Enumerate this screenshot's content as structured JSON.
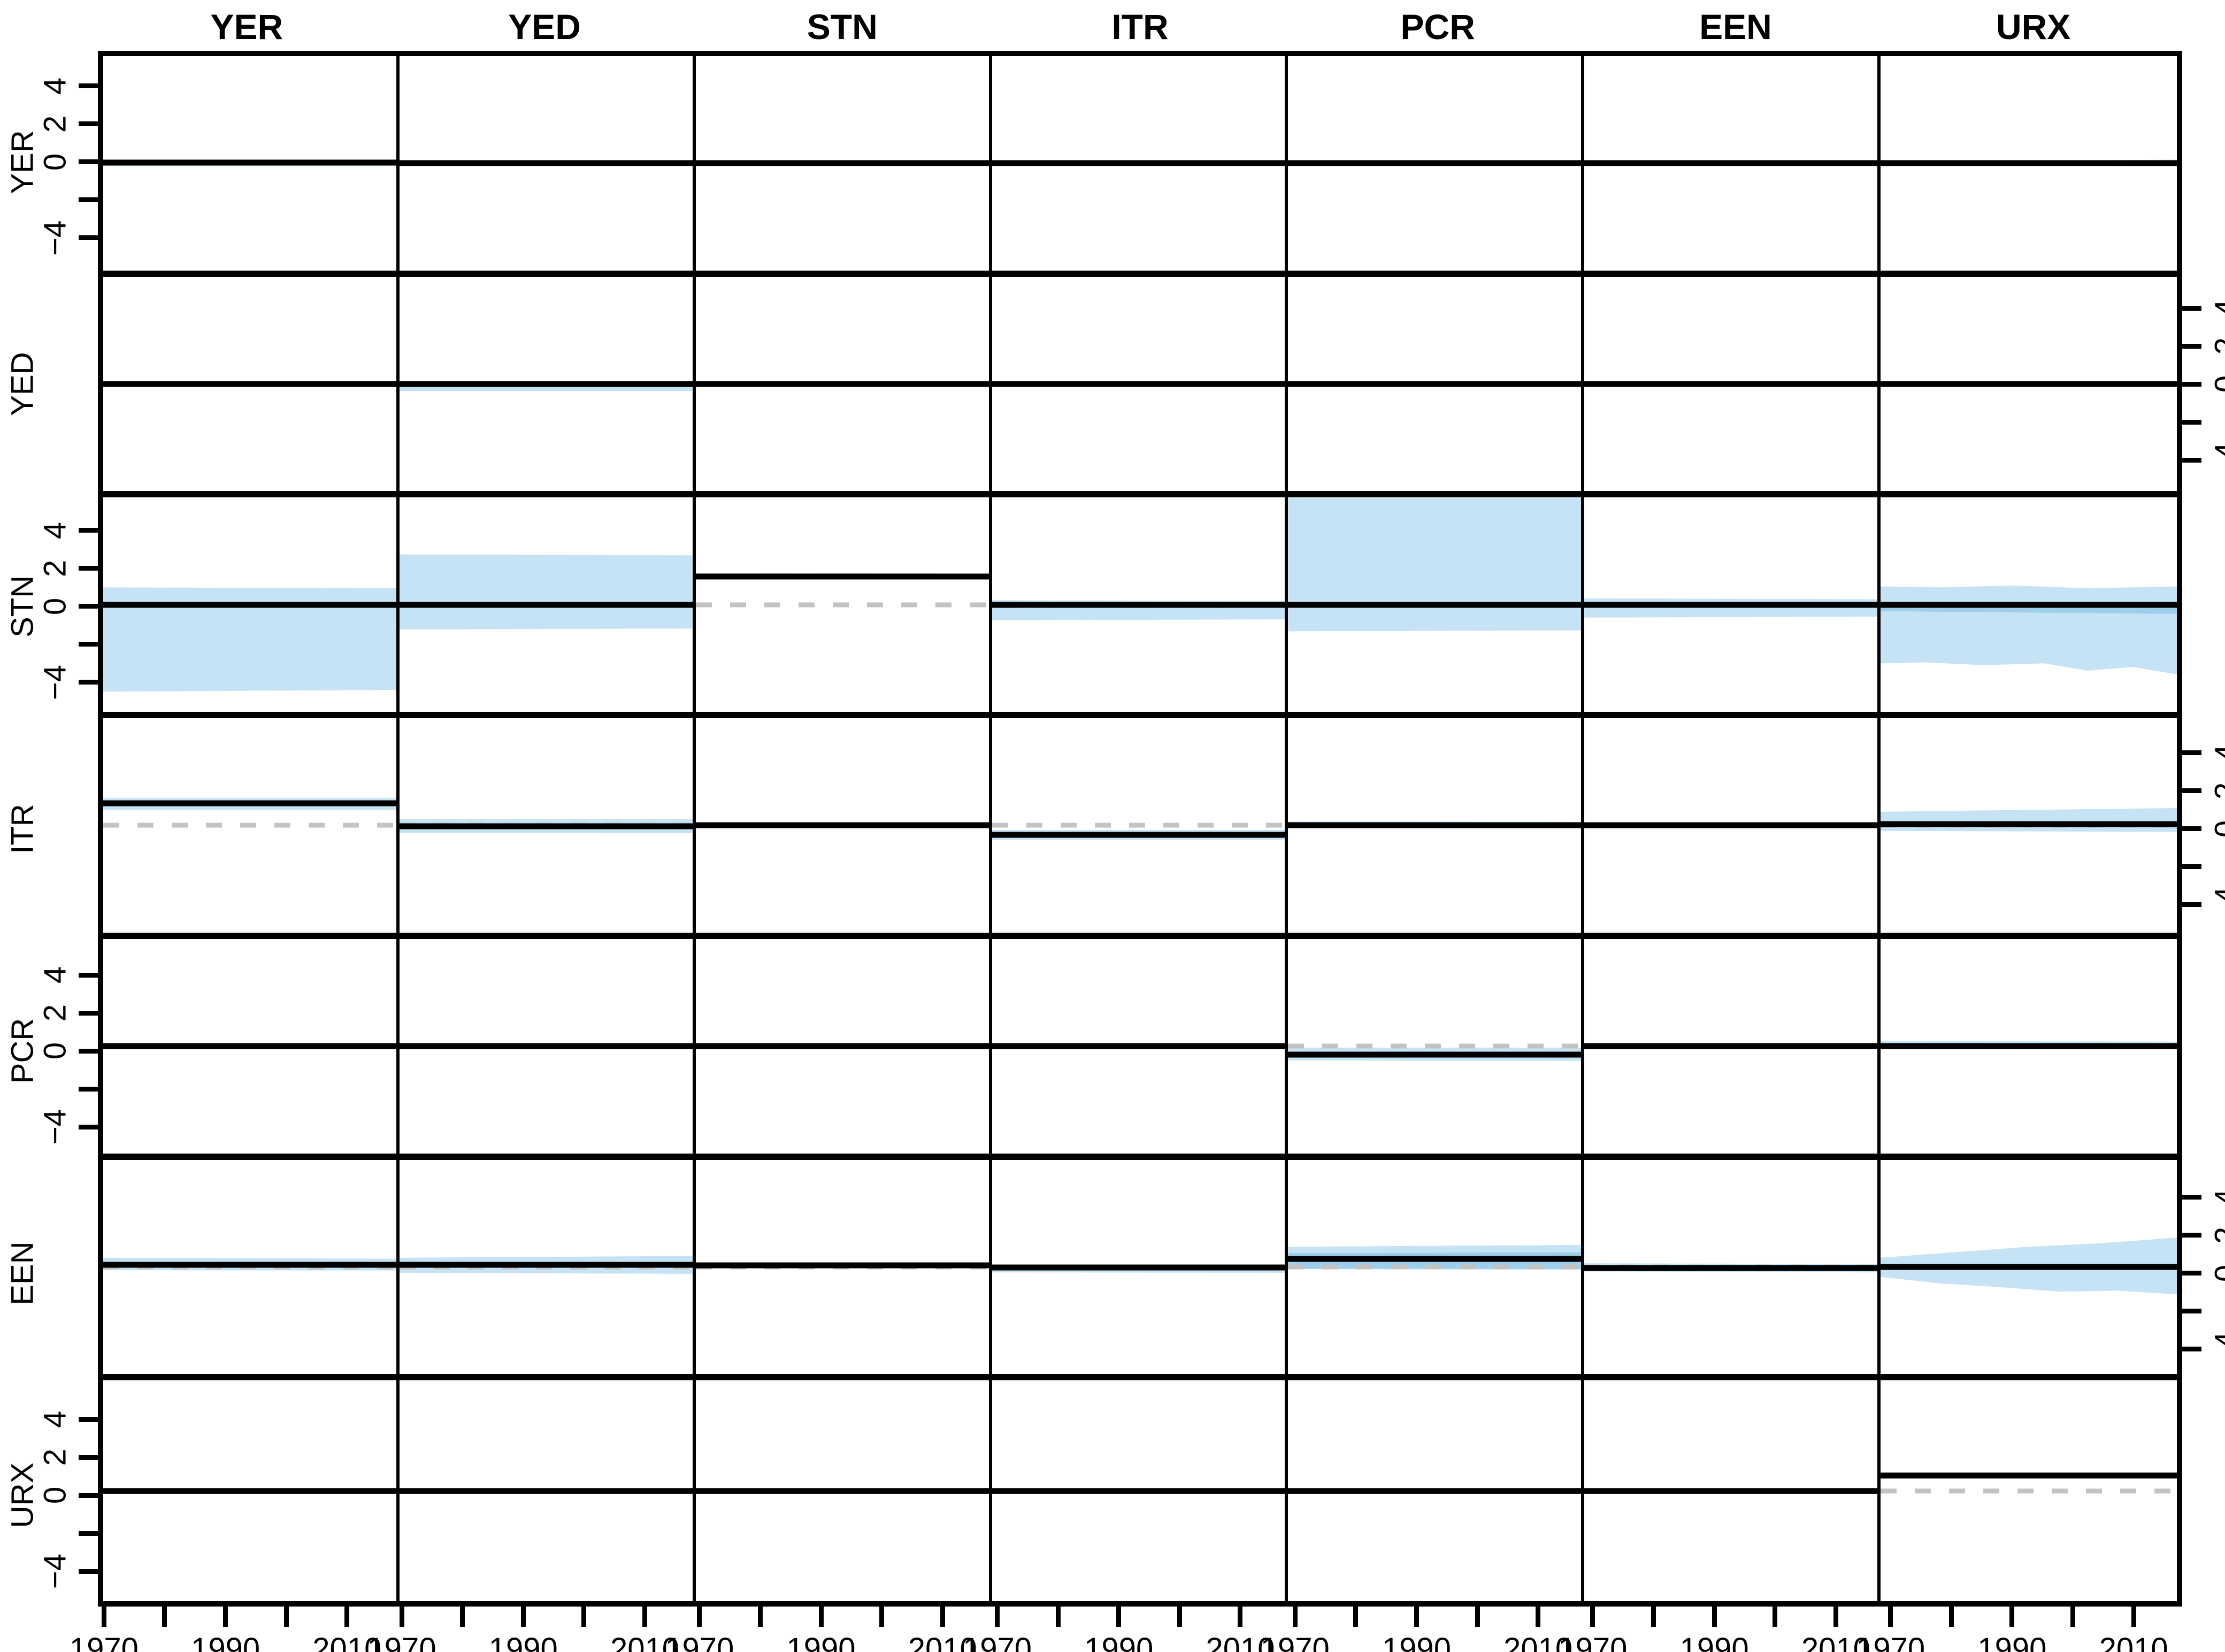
{
  "figure": {
    "title": "",
    "columns": [
      "YER",
      "YED",
      "STN",
      "ITR",
      "PCR",
      "EEN",
      "URX"
    ],
    "rows": [
      "YER",
      "YED",
      "STN",
      "ITR",
      "PCR",
      "EEN",
      "URX"
    ]
  },
  "axis": {
    "x_ticks": [
      1970,
      1980,
      1990,
      2000,
      2010
    ],
    "x_tick_labels": [
      "1970",
      "",
      "1990",
      "",
      "2010"
    ],
    "x_range": [
      1969,
      2018
    ],
    "y_ticks": [
      4,
      2,
      0,
      -2,
      -4
    ],
    "y_tick_labels": [
      "4",
      "2",
      "0",
      "",
      "−4"
    ],
    "y_range": [
      -5.85,
      5.85
    ],
    "left_axis_rows": [
      0,
      2,
      4,
      6
    ],
    "right_axis_rows": [
      1,
      3,
      5
    ]
  },
  "colors": {
    "band": "#c5e3f5",
    "band_inner": "#9dcfec",
    "line": "#000000",
    "zero_dash": "#c3c3c3",
    "frame": "#000000",
    "background": "#ffffff"
  },
  "chart_data": {
    "type": "line",
    "description": "7x7 matrix of impulse responses: rows = responding variable, columns = shock; each panel shows a flat response line with shaded confidence band over 1969-2018; values in units of the y axis (-4..4 ticks). band = [top-left, top-right, bottom-right, bottom-left] in data units.",
    "matrix": [
      {
        "response": "YER",
        "cells": [
          {
            "shock": "YER",
            "line": 0.05,
            "band": [
              0.12,
              0.1,
              -0.15,
              -0.15
            ]
          },
          {
            "shock": "YED",
            "line": 0,
            "band": [
              0.08,
              0.08,
              -0.1,
              -0.1
            ]
          },
          {
            "shock": "STN",
            "line": 0,
            "band": [
              0.05,
              0.05,
              -0.06,
              -0.06
            ]
          },
          {
            "shock": "ITR",
            "line": 0,
            "band": [
              0.06,
              0.06,
              -0.08,
              -0.08
            ]
          },
          {
            "shock": "PCR",
            "line": 0,
            "band": [
              0.06,
              0.06,
              -0.08,
              -0.08
            ]
          },
          {
            "shock": "EEN",
            "line": 0,
            "band": [
              0.05,
              0.05,
              -0.06,
              -0.06
            ]
          },
          {
            "shock": "URX",
            "line": 0,
            "band": [
              0.06,
              0.2,
              -0.12,
              -0.06
            ]
          }
        ]
      },
      {
        "response": "YED",
        "cells": [
          {
            "shock": "YER",
            "line": 0,
            "band": [
              0.08,
              0.08,
              -0.1,
              -0.1
            ]
          },
          {
            "shock": "YED",
            "line": 0,
            "band": [
              0.06,
              0.06,
              -0.38,
              -0.38
            ]
          },
          {
            "shock": "STN",
            "line": 0,
            "band": [
              0.04,
              0.04,
              -0.05,
              -0.05
            ]
          },
          {
            "shock": "ITR",
            "line": 0,
            "band": [
              0.06,
              0.06,
              -0.08,
              -0.08
            ]
          },
          {
            "shock": "PCR",
            "line": 0,
            "band": [
              0.07,
              0.07,
              -0.09,
              -0.09
            ]
          },
          {
            "shock": "EEN",
            "line": 0,
            "band": [
              0.04,
              0.04,
              -0.05,
              -0.05
            ]
          },
          {
            "shock": "URX",
            "line": 0,
            "band": [
              0.08,
              0.08,
              -0.1,
              -0.1
            ]
          }
        ]
      },
      {
        "response": "STN",
        "cells": [
          {
            "shock": "YER",
            "line": 0,
            "band": [
              0.95,
              0.9,
              -4.65,
              -4.75
            ]
          },
          {
            "shock": "YED",
            "line": 0,
            "band": [
              2.75,
              2.7,
              -1.3,
              -1.35
            ]
          },
          {
            "shock": "STN",
            "line": 1.55,
            "band": [
              1.72,
              1.7,
              1.38,
              1.4
            ]
          },
          {
            "shock": "ITR",
            "line": 0,
            "band": [
              0.25,
              0.2,
              -0.8,
              -0.85
            ]
          },
          {
            "shock": "PCR",
            "line": 0,
            "band": [
              5.85,
              5.85,
              -1.4,
              -1.45
            ]
          },
          {
            "shock": "EEN",
            "line": 0,
            "band": [
              0.35,
              0.3,
              -0.65,
              -0.7
            ]
          },
          {
            "shock": "URX",
            "line": 0,
            "pts": [
              [
                0,
                1.0
              ],
              [
                20,
                0.95
              ],
              [
                45,
                1.05
              ],
              [
                70,
                0.9
              ],
              [
                100,
                1.0
              ],
              [
                100,
                -3.8
              ],
              [
                85,
                -3.4
              ],
              [
                70,
                -3.6
              ],
              [
                55,
                -3.2
              ],
              [
                35,
                -3.3
              ],
              [
                15,
                -3.15
              ],
              [
                0,
                -3.2
              ]
            ],
            "inner": [
              0,
              0,
              -0.5,
              -0.35
            ]
          }
        ]
      },
      {
        "response": "ITR",
        "cells": [
          {
            "shock": "YER",
            "line": 1.2,
            "band": [
              1.5,
              1.5,
              0.85,
              0.85
            ]
          },
          {
            "shock": "YED",
            "line": -0.05,
            "band": [
              0.35,
              0.35,
              -0.42,
              -0.4
            ]
          },
          {
            "shock": "STN",
            "line": 0,
            "band": [
              0.04,
              0.04,
              -0.05,
              -0.05
            ]
          },
          {
            "shock": "ITR",
            "line": -0.5,
            "band": [
              -0.25,
              -0.25,
              -0.78,
              -0.78
            ]
          },
          {
            "shock": "PCR",
            "line": 0,
            "band": [
              0.22,
              0.2,
              -0.06,
              -0.06
            ]
          },
          {
            "shock": "EEN",
            "line": 0,
            "band": [
              0.04,
              0.04,
              -0.05,
              -0.05
            ]
          },
          {
            "shock": "URX",
            "line": 0.08,
            "band": [
              0.75,
              0.95,
              -0.35,
              -0.3
            ]
          }
        ]
      },
      {
        "response": "PCR",
        "cells": [
          {
            "shock": "YER",
            "line": 0,
            "band": [
              0.1,
              0.1,
              -0.12,
              -0.12
            ]
          },
          {
            "shock": "YED",
            "line": 0,
            "band": [
              0.07,
              0.07,
              -0.09,
              -0.09
            ]
          },
          {
            "shock": "STN",
            "line": 0,
            "band": [
              0.04,
              0.04,
              -0.05,
              -0.05
            ]
          },
          {
            "shock": "ITR",
            "line": 0,
            "band": [
              0.07,
              0.07,
              -0.09,
              -0.09
            ]
          },
          {
            "shock": "PCR",
            "line": -0.45,
            "band": [
              -0.08,
              -0.08,
              -0.8,
              -0.78
            ]
          },
          {
            "shock": "EEN",
            "line": 0,
            "band": [
              0.04,
              0.04,
              -0.05,
              -0.05
            ]
          },
          {
            "shock": "URX",
            "line": 0,
            "band": [
              0.28,
              0.25,
              -0.06,
              -0.06
            ]
          }
        ]
      },
      {
        "response": "EEN",
        "cells": [
          {
            "shock": "YER",
            "line": 0.1,
            "band": [
              0.5,
              0.45,
              -0.2,
              -0.18
            ]
          },
          {
            "shock": "YED",
            "line": 0.1,
            "band": [
              0.5,
              0.6,
              -0.38,
              -0.32
            ]
          },
          {
            "shock": "STN",
            "line": 0.08,
            "band": [
              0.14,
              0.12,
              0.02,
              0.02
            ]
          },
          {
            "shock": "ITR",
            "line": -0.03,
            "band": [
              0.1,
              0.06,
              -0.32,
              -0.3
            ]
          },
          {
            "shock": "PCR",
            "line": 0.45,
            "band": [
              1.1,
              1.2,
              -0.15,
              -0.12
            ],
            "inner": [
              0.75,
              0.8,
              -0.1,
              -0.1
            ]
          },
          {
            "shock": "EEN",
            "line": -0.05,
            "band": [
              0.2,
              0.15,
              -0.3,
              -0.25
            ],
            "inner": [
              0.08,
              0.05,
              -0.18,
              -0.15
            ]
          },
          {
            "shock": "URX",
            "line": 0,
            "pts": [
              [
                0,
                0.5
              ],
              [
                25,
                0.8
              ],
              [
                50,
                1.1
              ],
              [
                75,
                1.3
              ],
              [
                100,
                1.6
              ],
              [
                100,
                -1.5
              ],
              [
                80,
                -1.3
              ],
              [
                60,
                -1.35
              ],
              [
                40,
                -1.1
              ],
              [
                20,
                -0.9
              ],
              [
                0,
                -0.55
              ]
            ]
          }
        ]
      },
      {
        "response": "URX",
        "cells": [
          {
            "shock": "YER",
            "line": -0.02,
            "band": [
              0.08,
              0.08,
              -0.12,
              -0.12
            ]
          },
          {
            "shock": "YED",
            "line": 0,
            "band": [
              0.04,
              0.04,
              -0.05,
              -0.05
            ]
          },
          {
            "shock": "STN",
            "line": 0,
            "band": [
              0.03,
              0.03,
              -0.04,
              -0.04
            ]
          },
          {
            "shock": "ITR",
            "line": 0,
            "band": [
              0.05,
              0.05,
              -0.07,
              -0.07
            ]
          },
          {
            "shock": "PCR",
            "line": 0,
            "band": [
              0.04,
              0.04,
              -0.05,
              -0.05
            ]
          },
          {
            "shock": "EEN",
            "line": 0,
            "band": [
              0.04,
              0.04,
              -0.05,
              -0.05
            ]
          },
          {
            "shock": "URX",
            "line": 0.8,
            "band": [
              0.92,
              0.92,
              0.68,
              0.68
            ]
          }
        ]
      }
    ]
  }
}
